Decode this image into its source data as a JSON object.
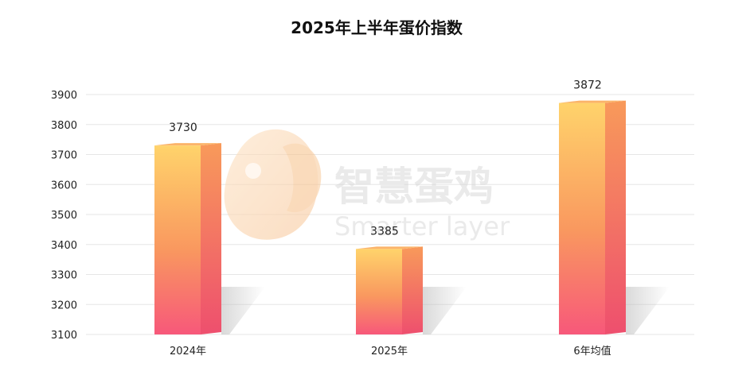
{
  "chart_data": {
    "type": "bar",
    "title": "2025年上半年蛋价指数",
    "categories": [
      "2024年",
      "2025年",
      "6年均值"
    ],
    "values": [
      3730,
      3385,
      3872
    ],
    "ylim": [
      3100,
      3900
    ],
    "yticks": [
      3100,
      3200,
      3300,
      3400,
      3500,
      3600,
      3700,
      3800,
      3900
    ],
    "grid": true,
    "xlabel": "",
    "ylabel": ""
  },
  "watermark": {
    "text": "智慧蛋鸡",
    "subtext": "Smarter layer"
  },
  "colors": {
    "bar_top": "#ffd36b",
    "bar_bottom": "#f7587a",
    "bar_side": "#f06a6a",
    "grid": "#e6e6e6"
  }
}
